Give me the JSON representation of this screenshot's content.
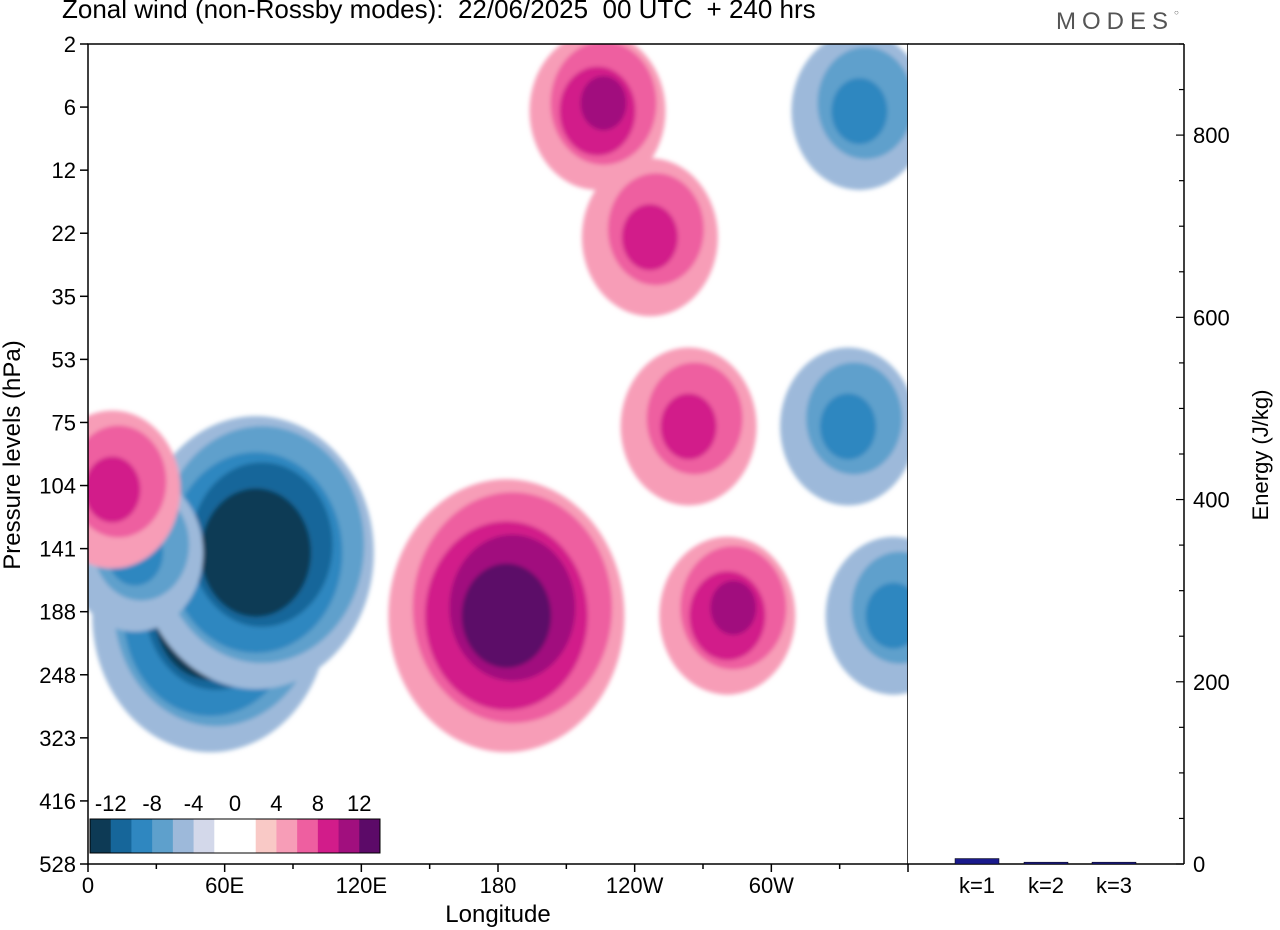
{
  "title": "Zonal wind (non-Rossby modes):  22/06/2025  00 UTC  + 240 hrs",
  "logo": "MODES",
  "chart_data": [
    {
      "type": "heatmap",
      "title": "Zonal wind (non-Rossby modes):  22/06/2025  00 UTC  + 240 hrs",
      "xlabel": "Longitude",
      "ylabel": "Pressure levels (hPa)",
      "x_ticks": [
        "0",
        "60E",
        "120E",
        "180",
        "120W",
        "60W"
      ],
      "y_ticks": [
        "2",
        "6",
        "12",
        "22",
        "35",
        "53",
        "75",
        "104",
        "141",
        "188",
        "248",
        "323",
        "416",
        "528"
      ],
      "colorbar": {
        "labels": [
          "-12",
          "-8",
          "-4",
          "0",
          "4",
          "8",
          "12"
        ],
        "colors": [
          "#0d3a55",
          "#16669a",
          "#2f87c0",
          "#5ea0cc",
          "#9db9da",
          "#d3d8ea",
          "#ffffff",
          "#ffffff",
          "#f9c9c6",
          "#f79db7",
          "#ee5fa0",
          "#d21c8a",
          "#a10f7e",
          "#5c0a68"
        ]
      },
      "features": [
        {
          "sign": "negative",
          "lon": 55,
          "level": "188",
          "peak": -14
        },
        {
          "sign": "negative",
          "lon": 75,
          "level": "141",
          "peak": -14
        },
        {
          "sign": "negative",
          "lon": 22,
          "level": "141",
          "peak": -6
        },
        {
          "sign": "negative",
          "lon": 355,
          "level": "188",
          "peak": -6
        },
        {
          "sign": "negative",
          "lon": 335,
          "level": "75",
          "peak": -6
        },
        {
          "sign": "negative",
          "lon": 340,
          "level": "6",
          "peak": -6
        },
        {
          "sign": "positive",
          "lon": 185,
          "level": "188",
          "peak": 11
        },
        {
          "sign": "positive",
          "lon": 282,
          "level": "188",
          "peak": 7
        },
        {
          "sign": "positive",
          "lon": 265,
          "level": "75",
          "peak": 5
        },
        {
          "sign": "positive",
          "lon": 248,
          "level": "22",
          "peak": 5
        },
        {
          "sign": "positive",
          "lon": 225,
          "level": "6",
          "peak": 7
        },
        {
          "sign": "positive",
          "lon": 12,
          "level": "104",
          "peak": 5
        }
      ]
    },
    {
      "type": "bar",
      "categories": [
        "k=1",
        "k=2",
        "k=3"
      ],
      "values": [
        6,
        2,
        2
      ],
      "ylabel": "Energy (J/kg)",
      "ylim": [
        0,
        900
      ],
      "y_ticks": [
        "0",
        "200",
        "400",
        "600",
        "800"
      ],
      "colors": [
        "#1a1a8c",
        "#1a1a8c",
        "#1a1a8c"
      ]
    }
  ]
}
